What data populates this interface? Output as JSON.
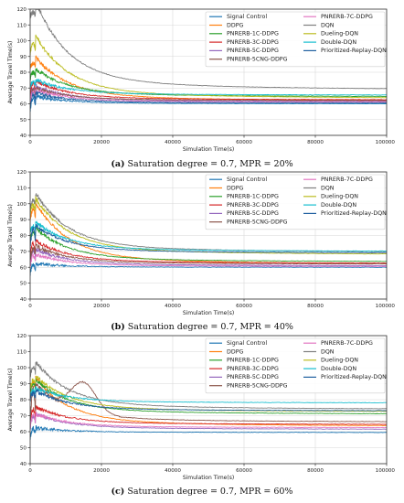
{
  "chart_data": [
    {
      "type": "line",
      "caption_tag": "(a)",
      "caption_text": " Saturation degree = 0.7, MPR = 20%",
      "xlabel": "Simulation Time(s)",
      "ylabel": "Average Travel Time(s)",
      "xlim": [
        0,
        100000
      ],
      "ylim": [
        40,
        120
      ],
      "xticks": [
        0,
        20000,
        40000,
        60000,
        80000,
        100000
      ],
      "yticks": [
        40,
        50,
        60,
        70,
        80,
        90,
        100,
        110,
        120
      ],
      "grid": true,
      "legend": "top-right",
      "series": [
        {
          "name": "Signal Control",
          "color": "#1f77b4",
          "start": 56,
          "peak": 64,
          "end": 60.0
        },
        {
          "name": "DDPG",
          "color": "#ff7f0e",
          "start": 83,
          "peak": 86,
          "end": 62.0
        },
        {
          "name": "PNRERB-1C-DDPG",
          "color": "#2ca02c",
          "start": 76,
          "peak": 80,
          "end": 64.5
        },
        {
          "name": "PNRERB-3C-DDPG",
          "color": "#d62728",
          "start": 65,
          "peak": 73,
          "end": 62.5
        },
        {
          "name": "PNRERB-5C-DDPG",
          "color": "#9467bd",
          "start": 63,
          "peak": 70,
          "end": 61.5
        },
        {
          "name": "PNRERB-5CNG-DDPG",
          "color": "#8c564b",
          "start": 62,
          "peak": 69,
          "end": 62.0
        },
        {
          "name": "PNRERB-7C-DDPG",
          "color": "#e377c2",
          "start": 61,
          "peak": 68,
          "end": 61.0
        },
        {
          "name": "DQN",
          "color": "#7f7f7f",
          "start": 115,
          "peak": 118,
          "end": 69.0
        },
        {
          "name": "Dueling-DQN",
          "color": "#bcbd22",
          "start": 92,
          "peak": 98,
          "end": 63.5
        },
        {
          "name": "Double-DQN",
          "color": "#17becf",
          "start": 70,
          "peak": 74,
          "end": 65.5
        },
        {
          "name": "Prioritized-Replay-DQN",
          "color": "#1f5f9f",
          "start": 58,
          "peak": 66,
          "end": 60.5
        }
      ]
    },
    {
      "type": "line",
      "caption_tag": "(b)",
      "caption_text": " Saturation degree = 0.7, MPR = 40%",
      "xlabel": "Simulation Time(s)",
      "ylabel": "Average Travel Time(s)",
      "xlim": [
        0,
        100000
      ],
      "ylim": [
        40,
        120
      ],
      "xticks": [
        0,
        20000,
        40000,
        60000,
        80000,
        100000
      ],
      "yticks": [
        40,
        50,
        60,
        70,
        80,
        90,
        100,
        110,
        120
      ],
      "grid": true,
      "legend": "top-right",
      "series": [
        {
          "name": "Signal Control",
          "color": "#1f77b4",
          "start": 56,
          "peak": 62,
          "end": 60.0
        },
        {
          "name": "DDPG",
          "color": "#ff7f0e",
          "start": 90,
          "peak": 96,
          "end": 62.0
        },
        {
          "name": "PNRERB-1C-DDPG",
          "color": "#2ca02c",
          "start": 78,
          "peak": 82,
          "end": 63.5
        },
        {
          "name": "PNRERB-3C-DDPG",
          "color": "#d62728",
          "start": 67,
          "peak": 75,
          "end": 62.5
        },
        {
          "name": "PNRERB-5C-DDPG",
          "color": "#9467bd",
          "start": 62,
          "peak": 70,
          "end": 61.0
        },
        {
          "name": "PNRERB-5CNG-DDPG",
          "color": "#8c564b",
          "start": 64,
          "peak": 72,
          "end": 62.0
        },
        {
          "name": "PNRERB-7C-DDPG",
          "color": "#e377c2",
          "start": 61,
          "peak": 67,
          "end": 60.5
        },
        {
          "name": "DQN",
          "color": "#7f7f7f",
          "start": 98,
          "peak": 102,
          "end": 69.5
        },
        {
          "name": "Dueling-DQN",
          "color": "#bcbd22",
          "start": 95,
          "peak": 99,
          "end": 68.0
        },
        {
          "name": "Double-DQN",
          "color": "#17becf",
          "start": 82,
          "peak": 86,
          "end": 70.0
        },
        {
          "name": "Prioritized-Replay-DQN",
          "color": "#1f5f9f",
          "start": 72,
          "peak": 84,
          "end": 69.0
        }
      ]
    },
    {
      "type": "line",
      "caption_tag": "(c)",
      "caption_text": " Saturation degree = 0.7, MPR = 60%",
      "xlabel": "Simulation Time(s)",
      "ylabel": "Average Travel Time(s)",
      "xlim": [
        0,
        100000
      ],
      "ylim": [
        40,
        120
      ],
      "xticks": [
        0,
        20000,
        40000,
        60000,
        80000,
        100000
      ],
      "yticks": [
        40,
        50,
        60,
        70,
        80,
        90,
        100,
        110,
        120
      ],
      "grid": true,
      "legend": "top-right",
      "series": [
        {
          "name": "Signal Control",
          "color": "#1f77b4",
          "start": 56,
          "peak": 62,
          "end": 59.5
        },
        {
          "name": "DDPG",
          "color": "#ff7f0e",
          "start": 84,
          "peak": 90,
          "end": 63.5
        },
        {
          "name": "PNRERB-1C-DDPG",
          "color": "#2ca02c",
          "start": 85,
          "peak": 90,
          "end": 71.0
        },
        {
          "name": "PNRERB-3C-DDPG",
          "color": "#d62728",
          "start": 66,
          "peak": 74,
          "end": 64.5
        },
        {
          "name": "PNRERB-5C-DDPG",
          "color": "#9467bd",
          "start": 62,
          "peak": 70,
          "end": 61.5
        },
        {
          "name": "PNRERB-5CNG-DDPG",
          "color": "#8c564b",
          "start": 64,
          "peak": 87,
          "end": 66.0
        },
        {
          "name": "PNRERB-7C-DDPG",
          "color": "#e377c2",
          "start": 63,
          "peak": 70,
          "end": 62.5
        },
        {
          "name": "DQN",
          "color": "#7f7f7f",
          "start": 95,
          "peak": 100,
          "end": 74.0
        },
        {
          "name": "Dueling-DQN",
          "color": "#bcbd22",
          "start": 88,
          "peak": 92,
          "end": 72.5
        },
        {
          "name": "Double-DQN",
          "color": "#17becf",
          "start": 82,
          "peak": 86,
          "end": 78.0
        },
        {
          "name": "Prioritized-Replay-DQN",
          "color": "#1f5f9f",
          "start": 80,
          "peak": 84,
          "end": 73.0
        }
      ]
    }
  ]
}
